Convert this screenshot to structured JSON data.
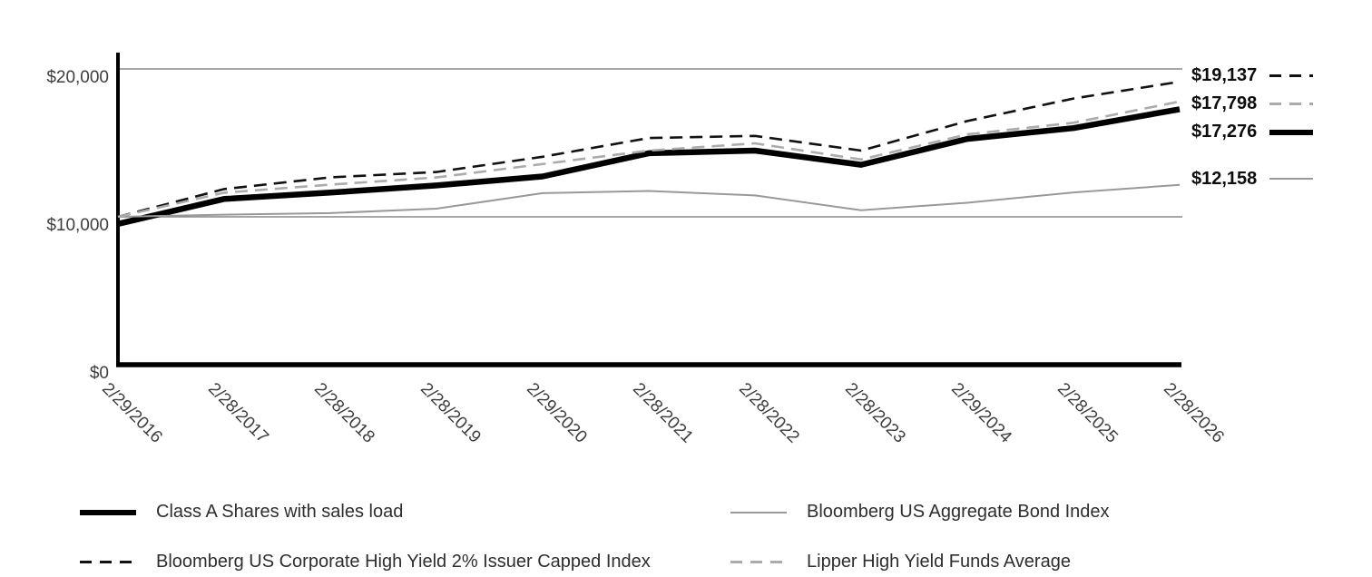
{
  "chart_data": {
    "type": "line",
    "title": "",
    "xlabel": "",
    "ylabel": "",
    "ylim": [
      0,
      21000
    ],
    "grid": "horizontal",
    "grid_values": [
      10000,
      20000
    ],
    "legend_position": "bottom",
    "y_ticks": [
      {
        "label": "$0",
        "value": 0
      },
      {
        "label": "$10,000",
        "value": 10000
      },
      {
        "label": "$20,000",
        "value": 20000
      }
    ],
    "categories": [
      "2/29/2016",
      "2/28/2017",
      "2/28/2018",
      "2/28/2019",
      "2/29/2020",
      "2/28/2021",
      "2/28/2022",
      "2/28/2023",
      "2/29/2024",
      "2/28/2025",
      "2/28/2026"
    ],
    "series": [
      {
        "name": "Class A Shares with sales load",
        "style": "solid",
        "color": "#000000",
        "width": 6.5,
        "final_label": "$17,276",
        "values": [
          9520,
          11210,
          11640,
          12120,
          12730,
          14300,
          14480,
          13520,
          15270,
          16000,
          17276
        ]
      },
      {
        "name": "Bloomberg US Corporate High Yield 2% Issuer Capped Index",
        "style": "dashed",
        "color": "#111111",
        "width": 2.6,
        "final_label": "$19,137",
        "values": [
          10000,
          11880,
          12670,
          13030,
          14060,
          15330,
          15470,
          14480,
          16480,
          18000,
          19137
        ]
      },
      {
        "name": "Bloomberg US Aggregate Bond Index",
        "style": "solid",
        "color": "#999999",
        "width": 2,
        "final_label": "$12,158",
        "values": [
          10000,
          10150,
          10250,
          10550,
          11600,
          11750,
          11450,
          10450,
          10950,
          11650,
          12158
        ]
      },
      {
        "name": "Lipper High Yield Funds Average",
        "style": "dashed",
        "color": "#ababab",
        "width": 2.6,
        "final_label": "$17,798",
        "values": [
          10000,
          11630,
          12180,
          12660,
          13570,
          14480,
          14970,
          13880,
          15575,
          16360,
          17798
        ]
      }
    ]
  },
  "colors": {
    "axis": "#000000",
    "gridline": "#8a8a8a",
    "tick_text": "#3d3d3d",
    "end_label_text": "#0d0d0d"
  }
}
